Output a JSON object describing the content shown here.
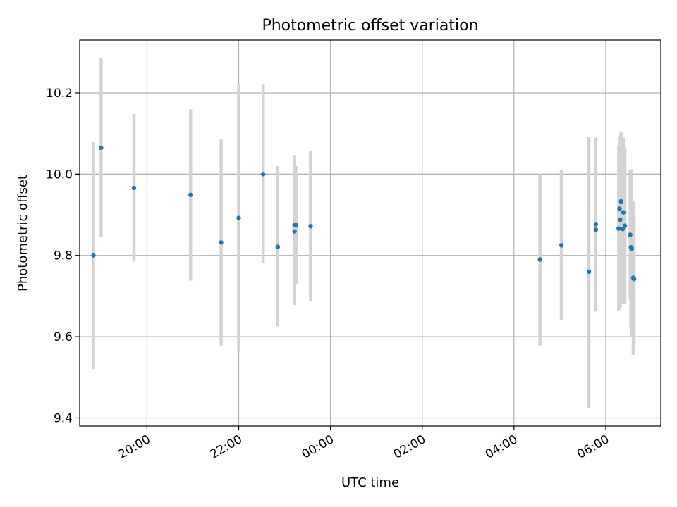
{
  "chart_data": {
    "type": "scatter",
    "title": "Photometric offset variation",
    "xlabel": "UTC time",
    "ylabel": "Photometric offset",
    "x_unit": "time",
    "xlim": [
      "18:32",
      "07:12"
    ],
    "ylim": [
      9.38,
      10.33
    ],
    "x_ticks": [
      "20:00",
      "22:00",
      "00:00",
      "02:00",
      "04:00",
      "06:00"
    ],
    "y_ticks": [
      9.4,
      9.6,
      9.8,
      10.0,
      10.2
    ],
    "y_tick_labels": [
      "9.4",
      "9.6",
      "9.8",
      "10.0",
      "10.2"
    ],
    "grid": true,
    "point_color": "#1f77b4",
    "errorbar_color": "#d3d3d3",
    "series": [
      {
        "points": [
          {
            "t": "18:50",
            "y": 9.8,
            "lo": 9.52,
            "hi": 10.08
          },
          {
            "t": "19:00",
            "y": 10.065,
            "lo": 9.845,
            "hi": 10.285
          },
          {
            "t": "19:43",
            "y": 9.966,
            "lo": 9.785,
            "hi": 10.148
          },
          {
            "t": "20:57",
            "y": 9.949,
            "lo": 9.738,
            "hi": 10.16
          },
          {
            "t": "21:37",
            "y": 9.832,
            "lo": 9.578,
            "hi": 10.085
          },
          {
            "t": "22:00",
            "y": 9.892,
            "lo": 9.565,
            "hi": 10.22
          },
          {
            "t": "22:32",
            "y": 10.0,
            "lo": 9.782,
            "hi": 10.22
          },
          {
            "t": "22:51",
            "y": 9.821,
            "lo": 9.625,
            "hi": 10.02
          },
          {
            "t": "23:13",
            "y": 9.875,
            "lo": 9.705,
            "hi": 10.047
          },
          {
            "t": "23:13",
            "y": 9.859,
            "lo": 9.678,
            "hi": 10.04
          },
          {
            "t": "23:15",
            "y": 9.874,
            "lo": 9.73,
            "hi": 10.02
          },
          {
            "t": "23:34",
            "y": 9.872,
            "lo": 9.688,
            "hi": 10.057
          },
          {
            "t": "04:34",
            "y": 9.79,
            "lo": 9.578,
            "hi": 10.0
          },
          {
            "t": "05:02",
            "y": 9.825,
            "lo": 9.64,
            "hi": 10.01
          },
          {
            "t": "05:38",
            "y": 9.76,
            "lo": 9.425,
            "hi": 10.092
          },
          {
            "t": "05:47",
            "y": 9.877,
            "lo": 9.662,
            "hi": 10.09
          },
          {
            "t": "05:47",
            "y": 9.863,
            "lo": 9.665,
            "hi": 10.09
          },
          {
            "t": "06:17",
            "y": 9.866,
            "lo": 9.665,
            "hi": 10.07
          },
          {
            "t": "06:18",
            "y": 9.915,
            "lo": 9.69,
            "hi": 10.09
          },
          {
            "t": "06:19",
            "y": 9.888,
            "lo": 9.67,
            "hi": 10.095
          },
          {
            "t": "06:20",
            "y": 9.933,
            "lo": 9.76,
            "hi": 10.105
          },
          {
            "t": "06:22",
            "y": 9.865,
            "lo": 9.68,
            "hi": 10.08
          },
          {
            "t": "06:23",
            "y": 9.906,
            "lo": 9.69,
            "hi": 10.09
          },
          {
            "t": "06:25",
            "y": 9.873,
            "lo": 9.68,
            "hi": 10.065
          },
          {
            "t": "06:32",
            "y": 9.851,
            "lo": 9.69,
            "hi": 10.01
          },
          {
            "t": "06:33",
            "y": 9.82,
            "lo": 9.62,
            "hi": 10.012
          },
          {
            "t": "06:34",
            "y": 9.817,
            "lo": 9.6,
            "hi": 9.985
          },
          {
            "t": "06:36",
            "y": 9.745,
            "lo": 9.555,
            "hi": 9.935
          },
          {
            "t": "06:37",
            "y": 9.742,
            "lo": 9.58,
            "hi": 9.905
          }
        ]
      }
    ]
  }
}
